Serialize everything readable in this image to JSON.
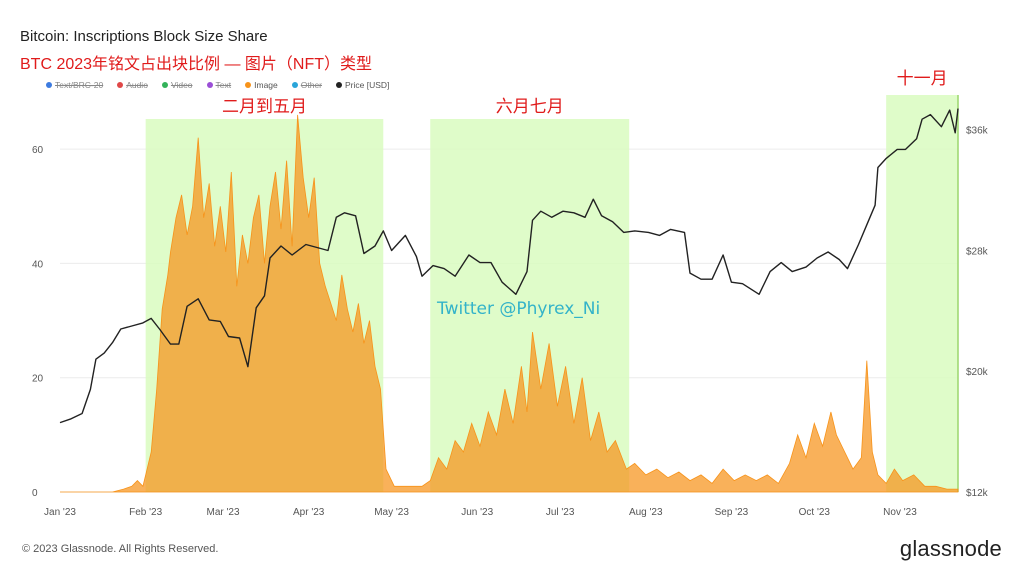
{
  "header": {
    "title": "Bitcoin: Inscriptions Block Size Share",
    "subtitle": "BTC 2023年铭文占出块比例 — 图片（NFT）类型"
  },
  "legend": [
    {
      "label": "Text/BRC-20",
      "color": "#3d7be0",
      "hidden": true
    },
    {
      "label": "Audio",
      "color": "#e04848",
      "hidden": true
    },
    {
      "label": "Video",
      "color": "#33b25a",
      "hidden": true
    },
    {
      "label": "Text",
      "color": "#9b4fd6",
      "hidden": true
    },
    {
      "label": "Image",
      "color": "#f7931a",
      "hidden": false
    },
    {
      "label": "Other",
      "color": "#2aa5d9",
      "hidden": true
    },
    {
      "label": "Price [USD]",
      "color": "#222222",
      "hidden": false
    }
  ],
  "footer": {
    "copyright": "© 2023 Glassnode. All Rights Reserved.",
    "logo": "glassnode"
  },
  "chart_data": {
    "type": "area",
    "title": "Bitcoin: Inscriptions Block Size Share",
    "y_left": {
      "ticks": [
        "0",
        "20",
        "40",
        "60"
      ],
      "range": [
        0,
        70
      ]
    },
    "y_right": {
      "ticks": [
        "$12k",
        "$20k",
        "$28k",
        "$36k"
      ],
      "range": [
        12000,
        38500
      ]
    },
    "x_ticks": [
      "Jan '23",
      "Feb '23",
      "Mar '23",
      "Apr '23",
      "May '23",
      "Jun '23",
      "Jul '23",
      "Aug '23",
      "Sep '23",
      "Oct '23",
      "Nov '23"
    ],
    "annotations": [
      {
        "label": "二月到五月",
        "start": "2023-02-01",
        "end": "2023-04-28"
      },
      {
        "label": "六月七月",
        "start": "2023-05-15",
        "end": "2023-07-26"
      },
      {
        "label": "十一月",
        "start": "2023-10-27",
        "end": "2023-11-22"
      }
    ],
    "watermark": "Twitter @Phyrex_Ni",
    "series": [
      {
        "name": "Image",
        "color": "#f7931a",
        "points": [
          [
            "2023-01-01",
            0
          ],
          [
            "2023-01-20",
            0
          ],
          [
            "2023-01-24",
            0.5
          ],
          [
            "2023-01-27",
            1
          ],
          [
            "2023-01-29",
            2
          ],
          [
            "2023-01-31",
            1
          ],
          [
            "2023-02-01",
            3
          ],
          [
            "2023-02-03",
            7
          ],
          [
            "2023-02-05",
            18
          ],
          [
            "2023-02-07",
            32
          ],
          [
            "2023-02-09",
            38
          ],
          [
            "2023-02-10",
            42
          ],
          [
            "2023-02-12",
            48
          ],
          [
            "2023-02-14",
            52
          ],
          [
            "2023-02-16",
            45
          ],
          [
            "2023-02-18",
            50
          ],
          [
            "2023-02-20",
            62
          ],
          [
            "2023-02-22",
            48
          ],
          [
            "2023-02-24",
            54
          ],
          [
            "2023-02-26",
            43
          ],
          [
            "2023-02-28",
            50
          ],
          [
            "2023-03-02",
            42
          ],
          [
            "2023-03-04",
            56
          ],
          [
            "2023-03-06",
            36
          ],
          [
            "2023-03-08",
            45
          ],
          [
            "2023-03-10",
            40
          ],
          [
            "2023-03-12",
            48
          ],
          [
            "2023-03-14",
            52
          ],
          [
            "2023-03-16",
            40
          ],
          [
            "2023-03-18",
            50
          ],
          [
            "2023-03-20",
            56
          ],
          [
            "2023-03-22",
            46
          ],
          [
            "2023-03-24",
            58
          ],
          [
            "2023-03-26",
            43
          ],
          [
            "2023-03-28",
            66
          ],
          [
            "2023-03-30",
            55
          ],
          [
            "2023-04-01",
            48
          ],
          [
            "2023-04-03",
            55
          ],
          [
            "2023-04-05",
            40
          ],
          [
            "2023-04-07",
            36
          ],
          [
            "2023-04-09",
            33
          ],
          [
            "2023-04-11",
            30
          ],
          [
            "2023-04-13",
            38
          ],
          [
            "2023-04-15",
            32
          ],
          [
            "2023-04-17",
            28
          ],
          [
            "2023-04-19",
            33
          ],
          [
            "2023-04-21",
            26
          ],
          [
            "2023-04-23",
            30
          ],
          [
            "2023-04-25",
            22
          ],
          [
            "2023-04-27",
            18
          ],
          [
            "2023-04-29",
            4
          ],
          [
            "2023-05-02",
            1
          ],
          [
            "2023-05-06",
            1
          ],
          [
            "2023-05-12",
            1
          ],
          [
            "2023-05-15",
            2
          ],
          [
            "2023-05-18",
            6
          ],
          [
            "2023-05-21",
            4
          ],
          [
            "2023-05-24",
            9
          ],
          [
            "2023-05-27",
            7
          ],
          [
            "2023-05-30",
            12
          ],
          [
            "2023-06-02",
            8
          ],
          [
            "2023-06-05",
            14
          ],
          [
            "2023-06-08",
            10
          ],
          [
            "2023-06-11",
            18
          ],
          [
            "2023-06-14",
            12
          ],
          [
            "2023-06-17",
            22
          ],
          [
            "2023-06-19",
            14
          ],
          [
            "2023-06-21",
            28
          ],
          [
            "2023-06-24",
            18
          ],
          [
            "2023-06-27",
            26
          ],
          [
            "2023-06-30",
            15
          ],
          [
            "2023-07-03",
            22
          ],
          [
            "2023-07-06",
            12
          ],
          [
            "2023-07-09",
            20
          ],
          [
            "2023-07-12",
            9
          ],
          [
            "2023-07-15",
            14
          ],
          [
            "2023-07-18",
            7
          ],
          [
            "2023-07-21",
            9
          ],
          [
            "2023-07-25",
            4
          ],
          [
            "2023-07-28",
            5
          ],
          [
            "2023-08-01",
            3
          ],
          [
            "2023-08-05",
            4
          ],
          [
            "2023-08-09",
            2.5
          ],
          [
            "2023-08-13",
            3.5
          ],
          [
            "2023-08-17",
            2
          ],
          [
            "2023-08-21",
            3
          ],
          [
            "2023-08-25",
            1.5
          ],
          [
            "2023-08-29",
            4
          ],
          [
            "2023-09-02",
            2
          ],
          [
            "2023-09-06",
            3
          ],
          [
            "2023-09-10",
            2
          ],
          [
            "2023-09-14",
            3
          ],
          [
            "2023-09-18",
            1.5
          ],
          [
            "2023-09-22",
            5
          ],
          [
            "2023-09-25",
            10
          ],
          [
            "2023-09-28",
            6
          ],
          [
            "2023-10-01",
            12
          ],
          [
            "2023-10-04",
            8
          ],
          [
            "2023-10-07",
            14
          ],
          [
            "2023-10-09",
            10
          ],
          [
            "2023-10-12",
            7
          ],
          [
            "2023-10-15",
            4
          ],
          [
            "2023-10-18",
            6
          ],
          [
            "2023-10-20",
            23
          ],
          [
            "2023-10-22",
            7
          ],
          [
            "2023-10-24",
            3
          ],
          [
            "2023-10-27",
            1.5
          ],
          [
            "2023-10-30",
            4
          ],
          [
            "2023-11-02",
            2
          ],
          [
            "2023-11-06",
            3
          ],
          [
            "2023-11-10",
            1
          ],
          [
            "2023-11-14",
            1
          ],
          [
            "2023-11-18",
            0.5
          ],
          [
            "2023-11-22",
            0.5
          ]
        ]
      },
      {
        "name": "Price [USD]",
        "color": "#222222",
        "points": [
          [
            "2023-01-01",
            16600
          ],
          [
            "2023-01-05",
            16850
          ],
          [
            "2023-01-09",
            17200
          ],
          [
            "2023-01-12",
            18800
          ],
          [
            "2023-01-14",
            20800
          ],
          [
            "2023-01-17",
            21200
          ],
          [
            "2023-01-20",
            21900
          ],
          [
            "2023-01-23",
            22800
          ],
          [
            "2023-01-27",
            23000
          ],
          [
            "2023-01-31",
            23200
          ],
          [
            "2023-02-03",
            23500
          ],
          [
            "2023-02-06",
            22800
          ],
          [
            "2023-02-10",
            21800
          ],
          [
            "2023-02-13",
            21800
          ],
          [
            "2023-02-16",
            24300
          ],
          [
            "2023-02-20",
            24800
          ],
          [
            "2023-02-24",
            23400
          ],
          [
            "2023-02-28",
            23300
          ],
          [
            "2023-03-03",
            22300
          ],
          [
            "2023-03-07",
            22200
          ],
          [
            "2023-03-10",
            20300
          ],
          [
            "2023-03-13",
            24200
          ],
          [
            "2023-03-16",
            25000
          ],
          [
            "2023-03-18",
            27500
          ],
          [
            "2023-03-22",
            28300
          ],
          [
            "2023-03-26",
            27700
          ],
          [
            "2023-03-31",
            28400
          ],
          [
            "2023-04-04",
            28200
          ],
          [
            "2023-04-08",
            28000
          ],
          [
            "2023-04-11",
            30200
          ],
          [
            "2023-04-14",
            30500
          ],
          [
            "2023-04-18",
            30300
          ],
          [
            "2023-04-21",
            27800
          ],
          [
            "2023-04-25",
            28300
          ],
          [
            "2023-04-28",
            29300
          ],
          [
            "2023-05-01",
            28000
          ],
          [
            "2023-05-06",
            29000
          ],
          [
            "2023-05-10",
            27600
          ],
          [
            "2023-05-12",
            26300
          ],
          [
            "2023-05-16",
            27000
          ],
          [
            "2023-05-20",
            26800
          ],
          [
            "2023-05-24",
            26300
          ],
          [
            "2023-05-29",
            27700
          ],
          [
            "2023-06-02",
            27200
          ],
          [
            "2023-06-06",
            27200
          ],
          [
            "2023-06-10",
            25900
          ],
          [
            "2023-06-15",
            25100
          ],
          [
            "2023-06-19",
            26600
          ],
          [
            "2023-06-21",
            30000
          ],
          [
            "2023-06-24",
            30600
          ],
          [
            "2023-06-28",
            30200
          ],
          [
            "2023-07-02",
            30600
          ],
          [
            "2023-07-06",
            30500
          ],
          [
            "2023-07-10",
            30200
          ],
          [
            "2023-07-13",
            31400
          ],
          [
            "2023-07-16",
            30300
          ],
          [
            "2023-07-20",
            29900
          ],
          [
            "2023-07-24",
            29200
          ],
          [
            "2023-07-28",
            29300
          ],
          [
            "2023-08-02",
            29200
          ],
          [
            "2023-08-06",
            29000
          ],
          [
            "2023-08-10",
            29400
          ],
          [
            "2023-08-15",
            29200
          ],
          [
            "2023-08-17",
            26500
          ],
          [
            "2023-08-21",
            26100
          ],
          [
            "2023-08-25",
            26100
          ],
          [
            "2023-08-29",
            27700
          ],
          [
            "2023-09-01",
            25900
          ],
          [
            "2023-09-05",
            25800
          ],
          [
            "2023-09-11",
            25100
          ],
          [
            "2023-09-15",
            26600
          ],
          [
            "2023-09-19",
            27200
          ],
          [
            "2023-09-23",
            26600
          ],
          [
            "2023-09-28",
            26900
          ],
          [
            "2023-10-02",
            27500
          ],
          [
            "2023-10-06",
            27900
          ],
          [
            "2023-10-10",
            27400
          ],
          [
            "2023-10-13",
            26800
          ],
          [
            "2023-10-17",
            28400
          ],
          [
            "2023-10-20",
            29700
          ],
          [
            "2023-10-23",
            31000
          ],
          [
            "2023-10-24",
            33500
          ],
          [
            "2023-10-27",
            34100
          ],
          [
            "2023-10-31",
            34700
          ],
          [
            "2023-11-03",
            34700
          ],
          [
            "2023-11-07",
            35400
          ],
          [
            "2023-11-09",
            36700
          ],
          [
            "2023-11-12",
            37000
          ],
          [
            "2023-11-16",
            36200
          ],
          [
            "2023-11-19",
            37300
          ],
          [
            "2023-11-21",
            35800
          ],
          [
            "2023-11-22",
            37400
          ]
        ]
      }
    ]
  }
}
